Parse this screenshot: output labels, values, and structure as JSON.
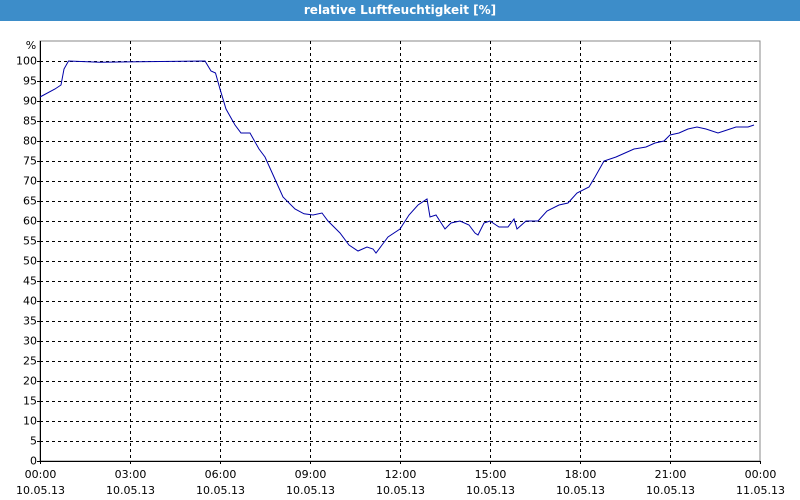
{
  "chart_data": {
    "type": "line",
    "title": "relative Luftfeuchtigkeit [%]",
    "ylabel": "%",
    "x": [
      0,
      0.5,
      0.7,
      0.8,
      0.95,
      2,
      5.5,
      5.7,
      5.85,
      6.0,
      6.2,
      6.5,
      6.7,
      7.0,
      7.3,
      7.5,
      7.8,
      8.1,
      8.5,
      8.8,
      9.1,
      9.4,
      9.6,
      10.0,
      10.3,
      10.6,
      10.9,
      11.1,
      11.2,
      11.4,
      11.6,
      12.0,
      12.3,
      12.6,
      12.9,
      13.0,
      13.2,
      13.5,
      13.7,
      14.0,
      14.3,
      14.5,
      14.6,
      14.8,
      15.0,
      15.3,
      15.6,
      15.8,
      15.9,
      16.2,
      16.6,
      16.9,
      17.3,
      17.6,
      17.9,
      18.3,
      18.5,
      18.8,
      19.2,
      19.5,
      19.8,
      20.2,
      20.5,
      20.8,
      21.0,
      21.3,
      21.6,
      21.9,
      22.2,
      22.6,
      22.8,
      23.2,
      23.6,
      23.8
    ],
    "values": [
      91,
      93,
      94,
      98,
      100,
      99.7,
      100,
      97.5,
      97,
      93,
      88,
      84,
      82,
      82,
      78,
      76,
      71,
      66,
      63,
      61.8,
      61.5,
      62,
      60,
      57,
      54,
      52.5,
      53.5,
      53,
      52,
      54,
      56,
      58,
      61.5,
      64,
      65.5,
      61,
      61.5,
      58,
      59.5,
      60,
      59,
      57,
      56.5,
      59.5,
      60,
      58.5,
      58.5,
      60.5,
      58,
      60,
      60,
      62.5,
      64,
      64.5,
      67,
      68.5,
      71,
      75,
      76,
      77,
      78,
      78.5,
      79.5,
      80,
      81.5,
      82,
      83,
      83.5,
      83,
      82,
      82.5,
      83.5,
      83.5,
      84
    ],
    "color": "#0000a8",
    "xlim": [
      0,
      24
    ],
    "ylim": [
      0,
      105
    ],
    "yticks": [
      0,
      5,
      10,
      15,
      20,
      25,
      30,
      35,
      40,
      45,
      50,
      55,
      60,
      65,
      70,
      75,
      80,
      85,
      90,
      95,
      100
    ],
    "xticks": [
      {
        "value": 0,
        "label": "00:00",
        "date": "10.05.13"
      },
      {
        "value": 3,
        "label": "03:00",
        "date": "10.05.13"
      },
      {
        "value": 6,
        "label": "06:00",
        "date": "10.05.13"
      },
      {
        "value": 9,
        "label": "09:00",
        "date": "10.05.13"
      },
      {
        "value": 12,
        "label": "12:00",
        "date": "10.05.13"
      },
      {
        "value": 15,
        "label": "15:00",
        "date": "10.05.13"
      },
      {
        "value": 18,
        "label": "18:00",
        "date": "10.05.13"
      },
      {
        "value": 21,
        "label": "21:00",
        "date": "10.05.13"
      },
      {
        "value": 24,
        "label": "00:00",
        "date": "11.05.13"
      }
    ],
    "grid": true
  }
}
